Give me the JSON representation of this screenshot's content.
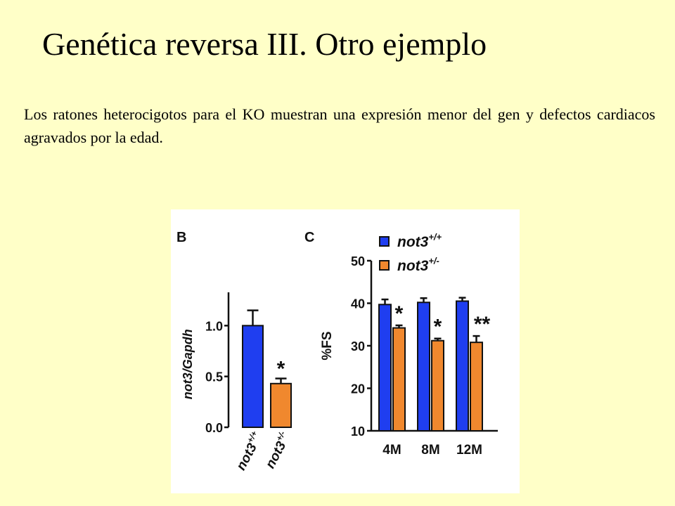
{
  "slide": {
    "title": "Genética reversa III. Otro ejemplo",
    "body": "Los ratones heterocigotos para el KO muestran una expresión menor del gen y defectos cardiacos agravados por la edad."
  },
  "colors": {
    "wildtype": "#1f3ef0",
    "heterozygous": "#f0882e",
    "background": "#ffffc8"
  },
  "chart_data": [
    {
      "type": "bar",
      "panel_label": "B",
      "ylabel": "not3/Gapdh",
      "yticks": [
        "0.0",
        "0.5",
        "1.0"
      ],
      "ylim": [
        0,
        1.3
      ],
      "categories": [
        {
          "base": "not3",
          "sup": "+/+"
        },
        {
          "base": "not3",
          "sup": "+/-"
        }
      ],
      "values": [
        1.0,
        0.43
      ],
      "errors": [
        0.15,
        0.05
      ],
      "significance": [
        "",
        "*"
      ]
    },
    {
      "type": "bar",
      "panel_label": "C",
      "ylabel": "%FS",
      "yticks": [
        "10",
        "20",
        "30",
        "40",
        "50"
      ],
      "ylim": [
        10,
        50
      ],
      "categories": [
        "4M",
        "8M",
        "12M"
      ],
      "series": [
        {
          "name": "not3",
          "sup": "+/+",
          "values": [
            39.7,
            40.2,
            40.5
          ],
          "errors": [
            1.2,
            1.0,
            0.8
          ]
        },
        {
          "name": "not3",
          "sup": "+/-",
          "values": [
            34.2,
            31.2,
            30.8
          ],
          "errors": [
            0.6,
            0.5,
            1.5
          ]
        }
      ],
      "significance": [
        "*",
        "*",
        "**"
      ],
      "legend_position": "top"
    }
  ]
}
